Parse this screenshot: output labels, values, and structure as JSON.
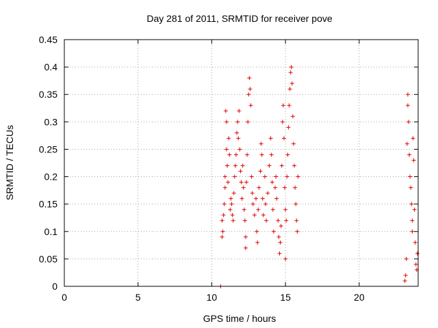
{
  "colors": {
    "marker": "#e00000",
    "grid": "#a0a0a0",
    "axis": "#000000",
    "background": "#ffffff"
  },
  "chart_data": {
    "type": "scatter",
    "title": "Day 281 of 2011, SRMTID for receiver pove",
    "xlabel": "GPS time / hours",
    "ylabel": "SRMTID / TECUs",
    "xlim": [
      0,
      24
    ],
    "ylim": [
      0,
      0.45
    ],
    "xticks": [
      0,
      5,
      10,
      15,
      20
    ],
    "xtick_labels": [
      "0",
      "5",
      "10",
      "15",
      "20"
    ],
    "yticks": [
      0,
      0.05,
      0.1,
      0.15,
      0.2,
      0.25,
      0.3,
      0.35,
      0.4,
      0.45
    ],
    "ytick_labels": [
      "0",
      "0.05",
      "0.1",
      "0.15",
      "0.2",
      "0.25",
      "0.3",
      "0.35",
      "0.4",
      "0.45"
    ],
    "grid": true,
    "marker": "plus",
    "series": [
      {
        "name": "SRMTID",
        "points": [
          [
            10.6,
            0.0
          ],
          [
            10.7,
            0.12
          ],
          [
            10.7,
            0.09
          ],
          [
            10.75,
            0.1
          ],
          [
            10.8,
            0.13
          ],
          [
            10.85,
            0.15
          ],
          [
            10.9,
            0.18
          ],
          [
            10.9,
            0.2
          ],
          [
            10.95,
            0.32
          ],
          [
            11.0,
            0.3
          ],
          [
            11.0,
            0.25
          ],
          [
            11.05,
            0.22
          ],
          [
            11.1,
            0.19
          ],
          [
            11.15,
            0.27
          ],
          [
            11.2,
            0.24
          ],
          [
            11.25,
            0.14
          ],
          [
            11.3,
            0.16
          ],
          [
            11.35,
            0.15
          ],
          [
            11.4,
            0.13
          ],
          [
            11.45,
            0.12
          ],
          [
            11.5,
            0.17
          ],
          [
            11.55,
            0.2
          ],
          [
            11.6,
            0.22
          ],
          [
            11.65,
            0.24
          ],
          [
            11.7,
            0.28
          ],
          [
            11.75,
            0.3
          ],
          [
            11.8,
            0.27
          ],
          [
            11.85,
            0.32
          ],
          [
            11.9,
            0.25
          ],
          [
            11.95,
            0.21
          ],
          [
            12.0,
            0.19
          ],
          [
            12.05,
            0.16
          ],
          [
            12.1,
            0.22
          ],
          [
            12.15,
            0.18
          ],
          [
            12.2,
            0.14
          ],
          [
            12.25,
            0.12
          ],
          [
            12.3,
            0.09
          ],
          [
            12.3,
            0.07
          ],
          [
            12.35,
            0.19
          ],
          [
            12.4,
            0.24
          ],
          [
            12.45,
            0.3
          ],
          [
            12.5,
            0.35
          ],
          [
            12.55,
            0.38
          ],
          [
            12.6,
            0.36
          ],
          [
            12.65,
            0.33
          ],
          [
            12.7,
            0.2
          ],
          [
            12.75,
            0.17
          ],
          [
            12.8,
            0.15
          ],
          [
            12.9,
            0.13
          ],
          [
            13.0,
            0.16
          ],
          [
            13.05,
            0.1
          ],
          [
            13.1,
            0.08
          ],
          [
            13.15,
            0.14
          ],
          [
            13.2,
            0.18
          ],
          [
            13.3,
            0.21
          ],
          [
            13.35,
            0.26
          ],
          [
            13.4,
            0.24
          ],
          [
            13.45,
            0.16
          ],
          [
            13.5,
            0.13
          ],
          [
            13.6,
            0.2
          ],
          [
            13.65,
            0.15
          ],
          [
            13.7,
            0.12
          ],
          [
            13.8,
            0.17
          ],
          [
            13.9,
            0.22
          ],
          [
            14.0,
            0.27
          ],
          [
            14.05,
            0.24
          ],
          [
            14.1,
            0.19
          ],
          [
            14.15,
            0.14
          ],
          [
            14.2,
            0.1
          ],
          [
            14.3,
            0.18
          ],
          [
            14.35,
            0.2
          ],
          [
            14.4,
            0.16
          ],
          [
            14.5,
            0.12
          ],
          [
            14.55,
            0.09
          ],
          [
            14.6,
            0.06
          ],
          [
            14.65,
            0.08
          ],
          [
            14.7,
            0.11
          ],
          [
            14.75,
            0.22
          ],
          [
            14.8,
            0.3
          ],
          [
            14.85,
            0.33
          ],
          [
            14.9,
            0.27
          ],
          [
            14.95,
            0.18
          ],
          [
            15.0,
            0.14
          ],
          [
            15.0,
            0.05
          ],
          [
            15.05,
            0.12
          ],
          [
            15.1,
            0.2
          ],
          [
            15.15,
            0.24
          ],
          [
            15.2,
            0.29
          ],
          [
            15.25,
            0.33
          ],
          [
            15.3,
            0.36
          ],
          [
            15.35,
            0.39
          ],
          [
            15.4,
            0.4
          ],
          [
            15.45,
            0.37
          ],
          [
            15.5,
            0.31
          ],
          [
            15.55,
            0.26
          ],
          [
            15.6,
            0.22
          ],
          [
            15.65,
            0.18
          ],
          [
            15.7,
            0.15
          ],
          [
            15.75,
            0.12
          ],
          [
            15.8,
            0.1
          ],
          [
            15.85,
            0.2
          ],
          [
            23.1,
            0.01
          ],
          [
            23.15,
            0.02
          ],
          [
            23.2,
            0.05
          ],
          [
            23.25,
            0.26
          ],
          [
            23.3,
            0.35
          ],
          [
            23.3,
            0.33
          ],
          [
            23.35,
            0.3
          ],
          [
            23.4,
            0.24
          ],
          [
            23.45,
            0.2
          ],
          [
            23.5,
            0.18
          ],
          [
            23.55,
            0.15
          ],
          [
            23.6,
            0.12
          ],
          [
            23.6,
            0.1
          ],
          [
            23.65,
            0.27
          ],
          [
            23.7,
            0.23
          ],
          [
            23.75,
            0.14
          ],
          [
            23.8,
            0.08
          ],
          [
            23.85,
            0.04
          ],
          [
            23.9,
            0.03
          ],
          [
            23.95,
            0.06
          ]
        ]
      }
    ]
  }
}
